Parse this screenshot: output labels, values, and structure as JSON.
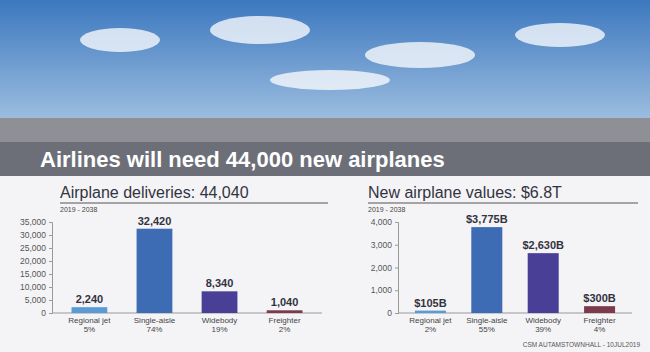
{
  "title": "Airlines will need 44,000 new airplanes",
  "footer": "CSM AUTAMSTOWNHALL - 10JUL2019",
  "chart_data": [
    {
      "type": "bar",
      "title": "Airplane deliveries: 44,040",
      "subtitle": "2019 - 2038",
      "categories": [
        "Regional jet",
        "Single-aisle",
        "Widebody",
        "Freighter"
      ],
      "share_labels": [
        "5%",
        "74%",
        "19%",
        "2%"
      ],
      "values": [
        2240,
        32420,
        8340,
        1040
      ],
      "value_labels": [
        "2,240",
        "32,420",
        "8,340",
        "1,040"
      ],
      "colors": [
        "#5b9bd5",
        "#3d6cb4",
        "#4a3f96",
        "#7b3b4b"
      ],
      "ylim": [
        0,
        35000
      ],
      "yticks": [
        0,
        {
          "value": 5000,
          "label": "5,000"
        },
        {
          "value": 10000,
          "label": "10,000"
        },
        {
          "value": 15000,
          "label": "15,000"
        },
        {
          "value": 20000,
          "label": "20,000"
        },
        {
          "value": 25000,
          "label": "25,000"
        },
        {
          "value": 30000,
          "label": "30,000"
        },
        {
          "value": 35000,
          "label": "35,000"
        }
      ],
      "grid": false,
      "data_labels": true
    },
    {
      "type": "bar",
      "title": "New airplane values: $6.8T",
      "subtitle": "2019 - 2038",
      "categories": [
        "Regional jet",
        "Single-aisle",
        "Widebody",
        "Freighter"
      ],
      "share_labels": [
        "2%",
        "55%",
        "39%",
        "4%"
      ],
      "values": [
        105,
        3775,
        2630,
        300
      ],
      "value_labels": [
        "$105B",
        "$3,775B",
        "$2,630B",
        "$300B"
      ],
      "colors": [
        "#5b9bd5",
        "#3d6cb4",
        "#4a3f96",
        "#7b3b4b"
      ],
      "ylim": [
        0,
        4000
      ],
      "yticks": [
        0,
        {
          "value": 1000,
          "label": "1,000"
        },
        {
          "value": 2000,
          "label": "2,000"
        },
        {
          "value": 3000,
          "label": "3,000"
        },
        {
          "value": 4000,
          "label": "4,000"
        }
      ],
      "grid": false,
      "data_labels": true
    }
  ]
}
